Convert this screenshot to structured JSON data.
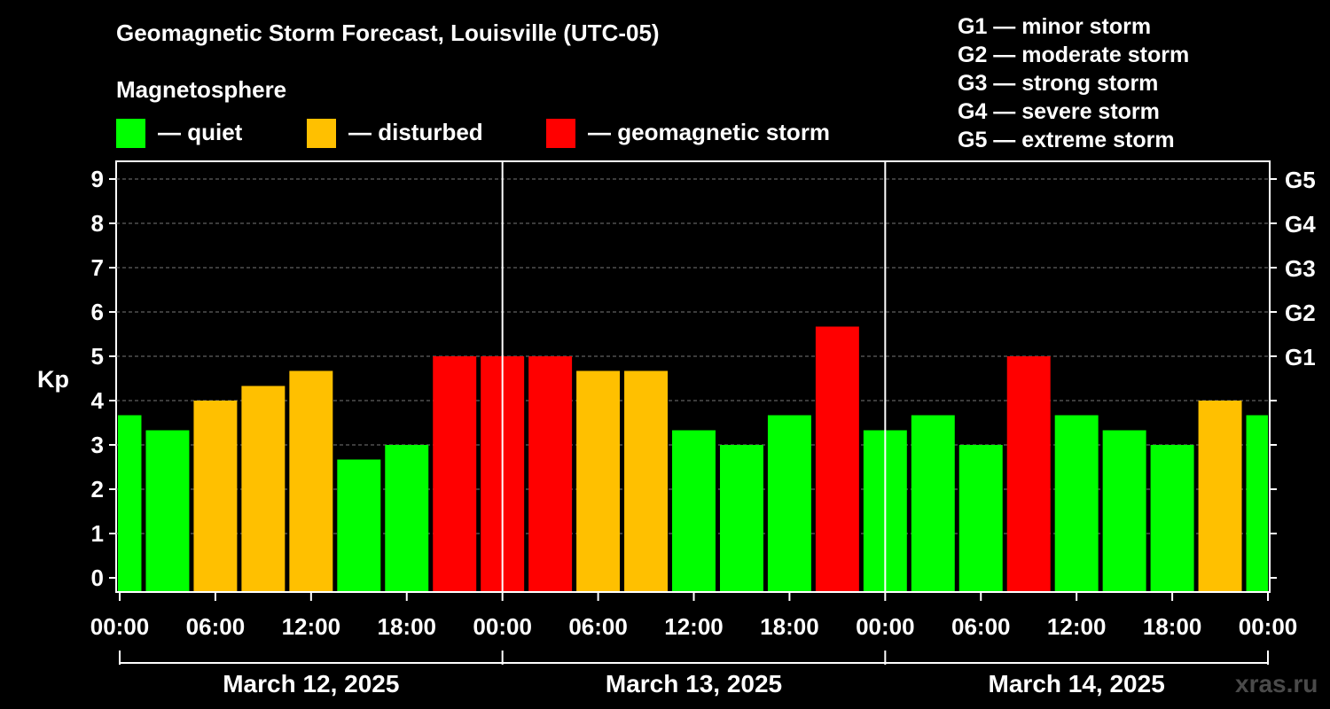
{
  "title": "Geomagnetic Storm Forecast, Louisville (UTC-05)",
  "magnetosphere_label": "Magnetosphere",
  "legend": [
    {
      "label": "— quiet",
      "color": "#00ff00"
    },
    {
      "label": "— disturbed",
      "color": "#ffc000"
    },
    {
      "label": "— geomagnetic storm",
      "color": "#ff0000"
    }
  ],
  "storm_scale": [
    "G1 — minor storm",
    "G2 — moderate storm",
    "G3 — strong storm",
    "G4 — severe storm",
    "G5 — extreme storm"
  ],
  "watermark": "xras.ru",
  "chart_data": {
    "type": "bar",
    "ylabel": "Kp",
    "ylim": [
      0,
      9
    ],
    "grid": true,
    "y_ticks": [
      "0",
      "1",
      "2",
      "3",
      "4",
      "5",
      "6",
      "7",
      "8",
      "9"
    ],
    "right_ticks": [
      {
        "kp": 5,
        "label": "G1"
      },
      {
        "kp": 6,
        "label": "G2"
      },
      {
        "kp": 7,
        "label": "G3"
      },
      {
        "kp": 8,
        "label": "G4"
      },
      {
        "kp": 9,
        "label": "G5"
      }
    ],
    "x_tick_labels": [
      "00:00",
      "06:00",
      "12:00",
      "18:00",
      "00:00",
      "06:00",
      "12:00",
      "18:00",
      "00:00",
      "06:00",
      "12:00",
      "18:00",
      "00:00"
    ],
    "days": [
      "March 12, 2025",
      "March 13, 2025",
      "March 14, 2025"
    ],
    "colors": {
      "quiet": "#00ff00",
      "disturbed": "#ffc000",
      "storm": "#ff0000"
    },
    "series": [
      {
        "values": [
          3.67,
          3.33,
          4.0,
          4.33,
          4.67,
          2.67,
          3.0,
          5.0,
          5.0,
          5.0,
          4.67,
          4.67,
          3.33,
          3.0,
          3.67,
          5.67,
          3.33,
          3.67,
          3.0,
          5.0,
          3.67,
          3.33,
          3.0,
          4.0,
          3.67
        ],
        "levels": [
          "quiet",
          "quiet",
          "disturbed",
          "disturbed",
          "disturbed",
          "quiet",
          "quiet",
          "storm",
          "storm",
          "storm",
          "disturbed",
          "disturbed",
          "quiet",
          "quiet",
          "quiet",
          "storm",
          "quiet",
          "quiet",
          "quiet",
          "storm",
          "quiet",
          "quiet",
          "quiet",
          "disturbed",
          "quiet"
        ]
      }
    ]
  }
}
